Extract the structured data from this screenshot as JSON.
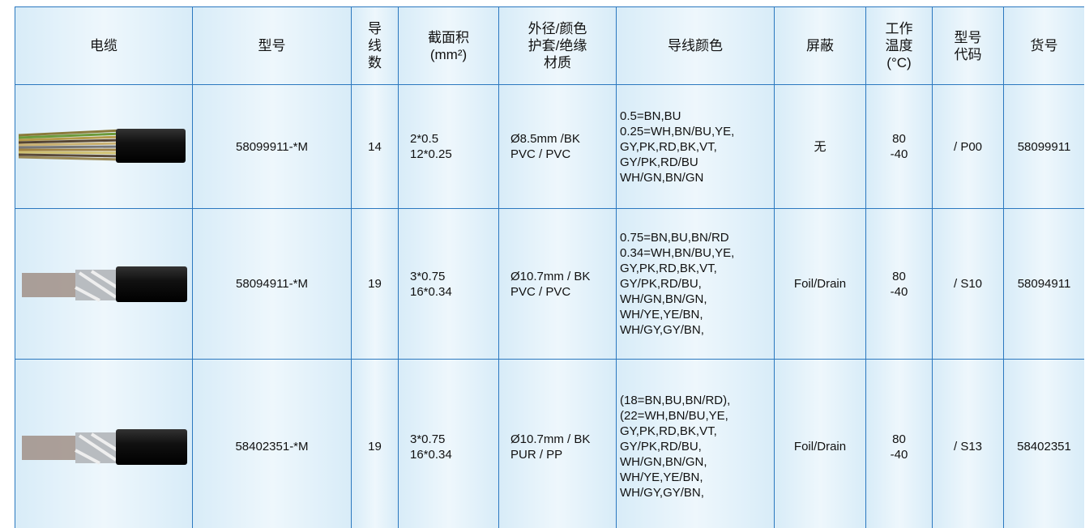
{
  "table": {
    "header": [
      [
        "电缆"
      ],
      [
        "型号"
      ],
      [
        "导",
        "线",
        "数"
      ],
      [
        "截面积",
        "(mm²)"
      ],
      [
        "外径/颜色",
        "护套/绝缘",
        "材质"
      ],
      [
        "导线颜色"
      ],
      [
        "屏蔽"
      ],
      [
        "工作",
        "温度",
        "(°C)"
      ],
      [
        "型号",
        "代码"
      ],
      [
        "货号"
      ]
    ],
    "rows": [
      [
        [
          "58099911-*M"
        ],
        [
          "14"
        ],
        [
          "2*0.5",
          "12*0.25"
        ],
        [
          "Ø8.5mm /BK",
          "PVC / PVC"
        ],
        [
          "0.5=BN,BU",
          "0.25=WH,BN/BU,YE,",
          "GY,PK,RD,BK,VT,",
          "GY/PK,RD/BU",
          "WH/GN,BN/GN"
        ],
        [
          "无"
        ],
        [
          "80",
          "-40"
        ],
        [
          "/ P00"
        ],
        [
          "58099911"
        ]
      ],
      [
        [
          "58094911-*M"
        ],
        [
          "19"
        ],
        [
          "3*0.75",
          "16*0.34"
        ],
        [
          "Ø10.7mm / BK",
          "PVC / PVC"
        ],
        [
          "0.75=BN,BU,BN/RD",
          "0.34=WH,BN/BU,YE,",
          "GY,PK,RD,BK,VT,",
          "GY/PK,RD/BU,",
          "WH/GN,BN/GN,",
          "WH/YE,YE/BN,",
          "WH/GY,GY/BN,"
        ],
        [
          "Foil/Drain"
        ],
        [
          "80",
          "-40"
        ],
        [
          "/ S10"
        ],
        [
          "58094911"
        ]
      ],
      [
        [
          "58402351-*M"
        ],
        [
          "19"
        ],
        [
          "3*0.75",
          "16*0.34"
        ],
        [
          "Ø10.7mm / BK",
          "PUR / PP"
        ],
        [
          "(18=BN,BU,BN/RD),",
          "(22=WH,BN/BU,YE,",
          "GY,PK,RD,BK,VT,",
          "GY/PK,RD/BU,",
          "WH/GN,BN/GN,",
          "WH/YE,YE/BN,",
          "WH/GY,GY/BN,"
        ],
        [
          "Foil/Drain"
        ],
        [
          "80",
          "-40"
        ],
        [
          "/ S13"
        ],
        [
          "58402351"
        ]
      ]
    ]
  }
}
